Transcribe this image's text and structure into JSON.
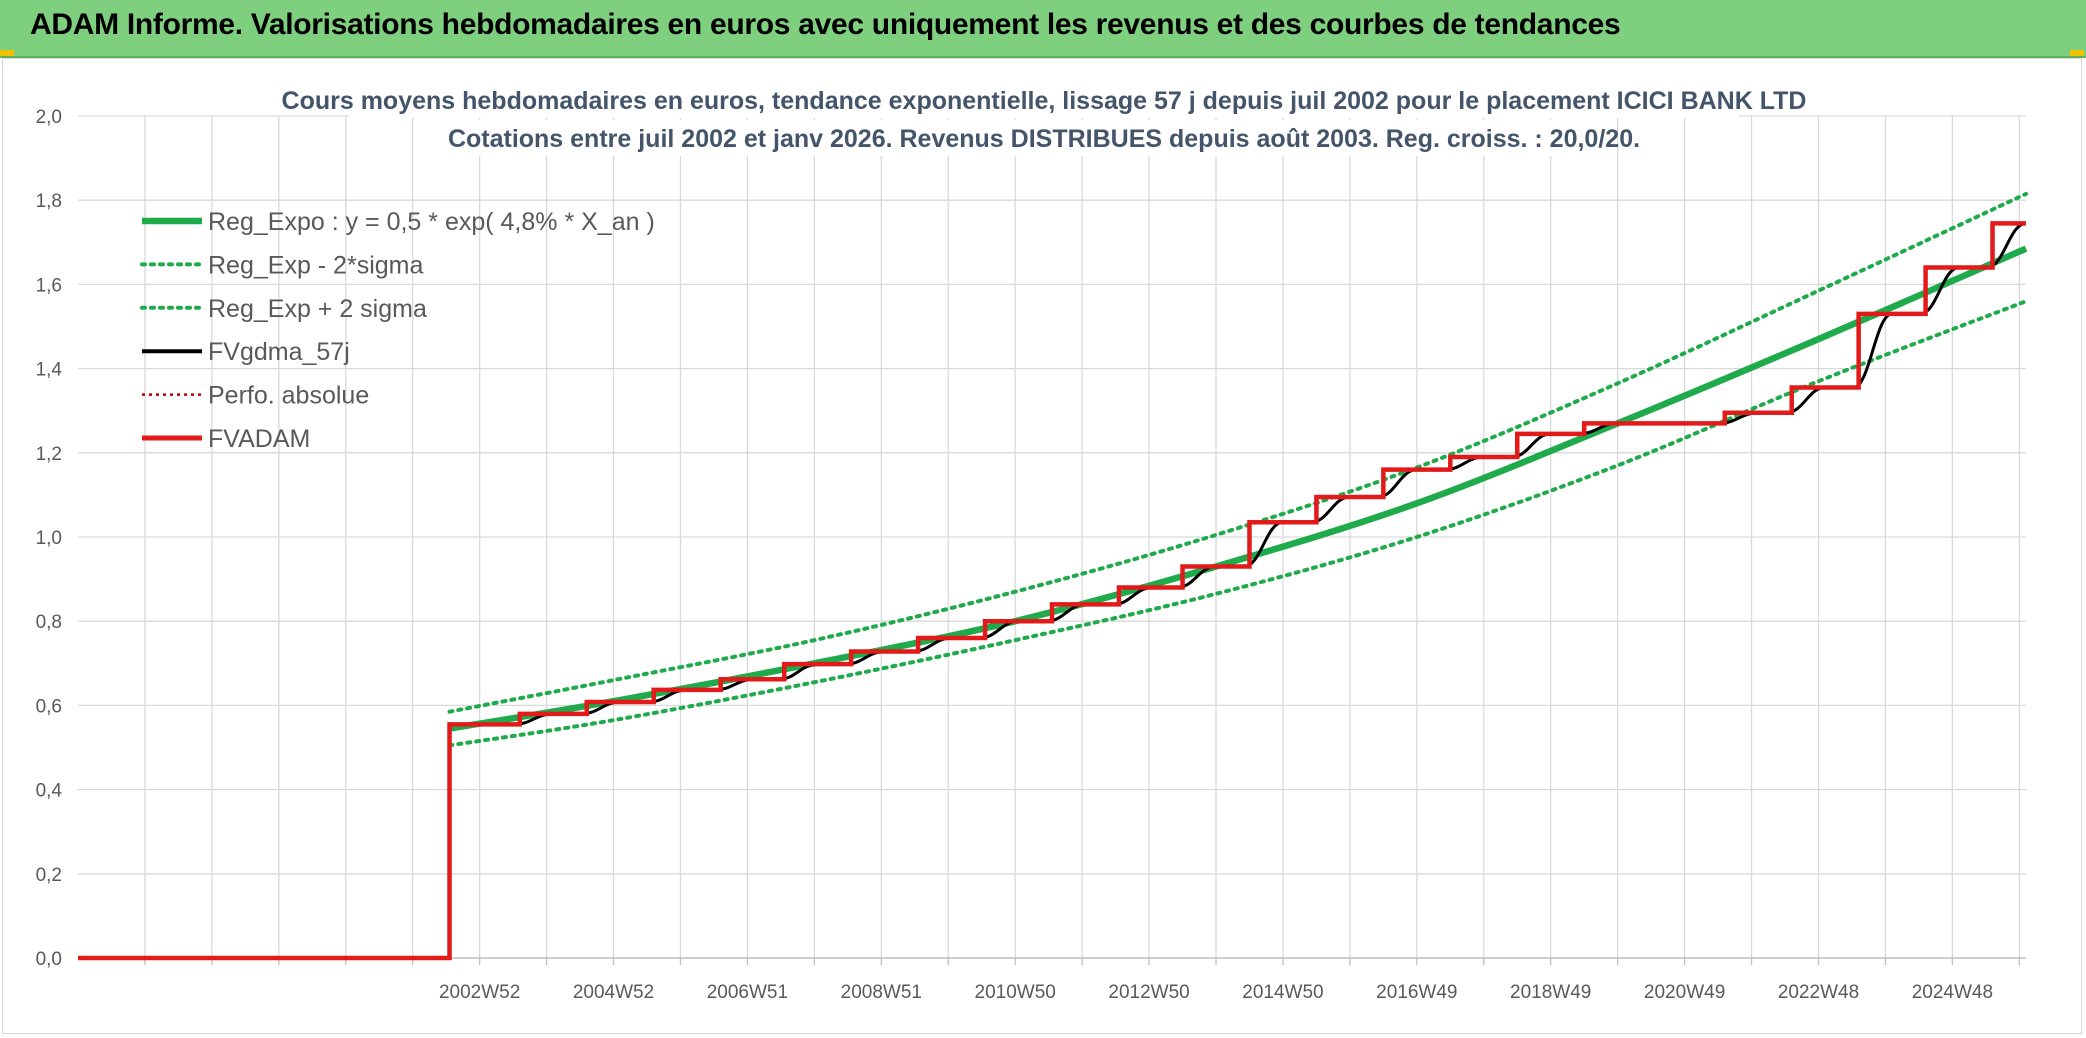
{
  "header": {
    "title": "ADAM Informe. Valorisations hebdomadaires en euros avec uniquement les revenus et des courbes de tendances"
  },
  "colors": {
    "banner": "#7ecf7e",
    "reg_expo": "#1faa4b",
    "fvgdma": "#000000",
    "perfo": "#c00000",
    "fvadam": "#e31a1a"
  },
  "chart_data": {
    "type": "line",
    "title_lines": [
      "Cours moyens hebdomadaires en euros, tendance exponentielle, lissage 57 j depuis juil 2002 pour le placement ICICI BANK LTD",
      "Cotations entre juil 2002 et janv 2026. Revenus DISTRIBUES depuis août 2003. Reg. croiss. : 20,0/20."
    ],
    "x_start": 1997.0,
    "x_end": 2026.1,
    "xticks": [
      {
        "label": "2002W52",
        "x": 2003.0
      },
      {
        "label": "2004W52",
        "x": 2005.0
      },
      {
        "label": "2006W51",
        "x": 2007.0
      },
      {
        "label": "2008W51",
        "x": 2009.0
      },
      {
        "label": "2010W50",
        "x": 2011.0
      },
      {
        "label": "2012W50",
        "x": 2013.0
      },
      {
        "label": "2014W50",
        "x": 2015.0
      },
      {
        "label": "2016W49",
        "x": 2017.0
      },
      {
        "label": "2018W49",
        "x": 2019.0
      },
      {
        "label": "2020W49",
        "x": 2021.0
      },
      {
        "label": "2022W48",
        "x": 2023.0
      },
      {
        "label": "2024W48",
        "x": 2025.0
      }
    ],
    "ylim": [
      0,
      2.0
    ],
    "yticks": [
      "0,0",
      "0,2",
      "0,4",
      "0,6",
      "0,8",
      "1,0",
      "1,2",
      "1,4",
      "1,6",
      "1,8",
      "2,0"
    ],
    "grid": true,
    "legend_position": "top-left",
    "legend": [
      {
        "key": "reg_expo",
        "label": "Reg_Expo : y = 0,5 * exp( 4,8% *  X_an )"
      },
      {
        "key": "reg_minus",
        "label": "Reg_Exp - 2*sigma"
      },
      {
        "key": "reg_plus",
        "label": "Reg_Exp + 2 sigma"
      },
      {
        "key": "fvgdma",
        "label": "FVgdma_57j"
      },
      {
        "key": "perfo",
        "label": "Perfo. absolue"
      },
      {
        "key": "fvadam",
        "label": "FVADAM"
      }
    ],
    "series": {
      "reg_expo": {
        "x": [
          2002.55,
          2005,
          2008,
          2011,
          2014,
          2017,
          2020,
          2023,
          2026.1
        ],
        "y": [
          0.545,
          0.61,
          0.7,
          0.8,
          0.93,
          1.08,
          1.27,
          1.47,
          1.685
        ]
      },
      "reg_minus": {
        "x": [
          2002.55,
          2005,
          2008,
          2011,
          2014,
          2017,
          2020,
          2023,
          2026.1
        ],
        "y": [
          0.505,
          0.565,
          0.655,
          0.755,
          0.865,
          1.0,
          1.17,
          1.37,
          1.56
        ]
      },
      "reg_plus": {
        "x": [
          2002.55,
          2005,
          2008,
          2011,
          2014,
          2017,
          2020,
          2023,
          2026.1
        ],
        "y": [
          0.585,
          0.66,
          0.755,
          0.87,
          1.005,
          1.165,
          1.365,
          1.585,
          1.815
        ]
      },
      "fvadam": {
        "pre": {
          "x0": 1997.0,
          "x1": 2002.55,
          "y": 0.0
        },
        "x0": 2002.55,
        "end": 2026.1,
        "steps": [
          {
            "x": 2002.55,
            "y": 0.555
          },
          {
            "x": 2003.6,
            "y": 0.58
          },
          {
            "x": 2004.6,
            "y": 0.608
          },
          {
            "x": 2005.6,
            "y": 0.637
          },
          {
            "x": 2006.6,
            "y": 0.662
          },
          {
            "x": 2007.55,
            "y": 0.698
          },
          {
            "x": 2008.55,
            "y": 0.728
          },
          {
            "x": 2009.55,
            "y": 0.76
          },
          {
            "x": 2010.55,
            "y": 0.8
          },
          {
            "x": 2011.55,
            "y": 0.84
          },
          {
            "x": 2012.55,
            "y": 0.88
          },
          {
            "x": 2013.5,
            "y": 0.93
          },
          {
            "x": 2014.5,
            "y": 1.035
          },
          {
            "x": 2015.5,
            "y": 1.095
          },
          {
            "x": 2016.5,
            "y": 1.16
          },
          {
            "x": 2017.5,
            "y": 1.19
          },
          {
            "x": 2018.5,
            "y": 1.245
          },
          {
            "x": 2019.5,
            "y": 1.27
          },
          {
            "x": 2021.6,
            "y": 1.295
          },
          {
            "x": 2022.6,
            "y": 1.355
          },
          {
            "x": 2023.6,
            "y": 1.53
          },
          {
            "x": 2024.6,
            "y": 1.64
          },
          {
            "x": 2025.6,
            "y": 1.745
          }
        ]
      }
    }
  }
}
